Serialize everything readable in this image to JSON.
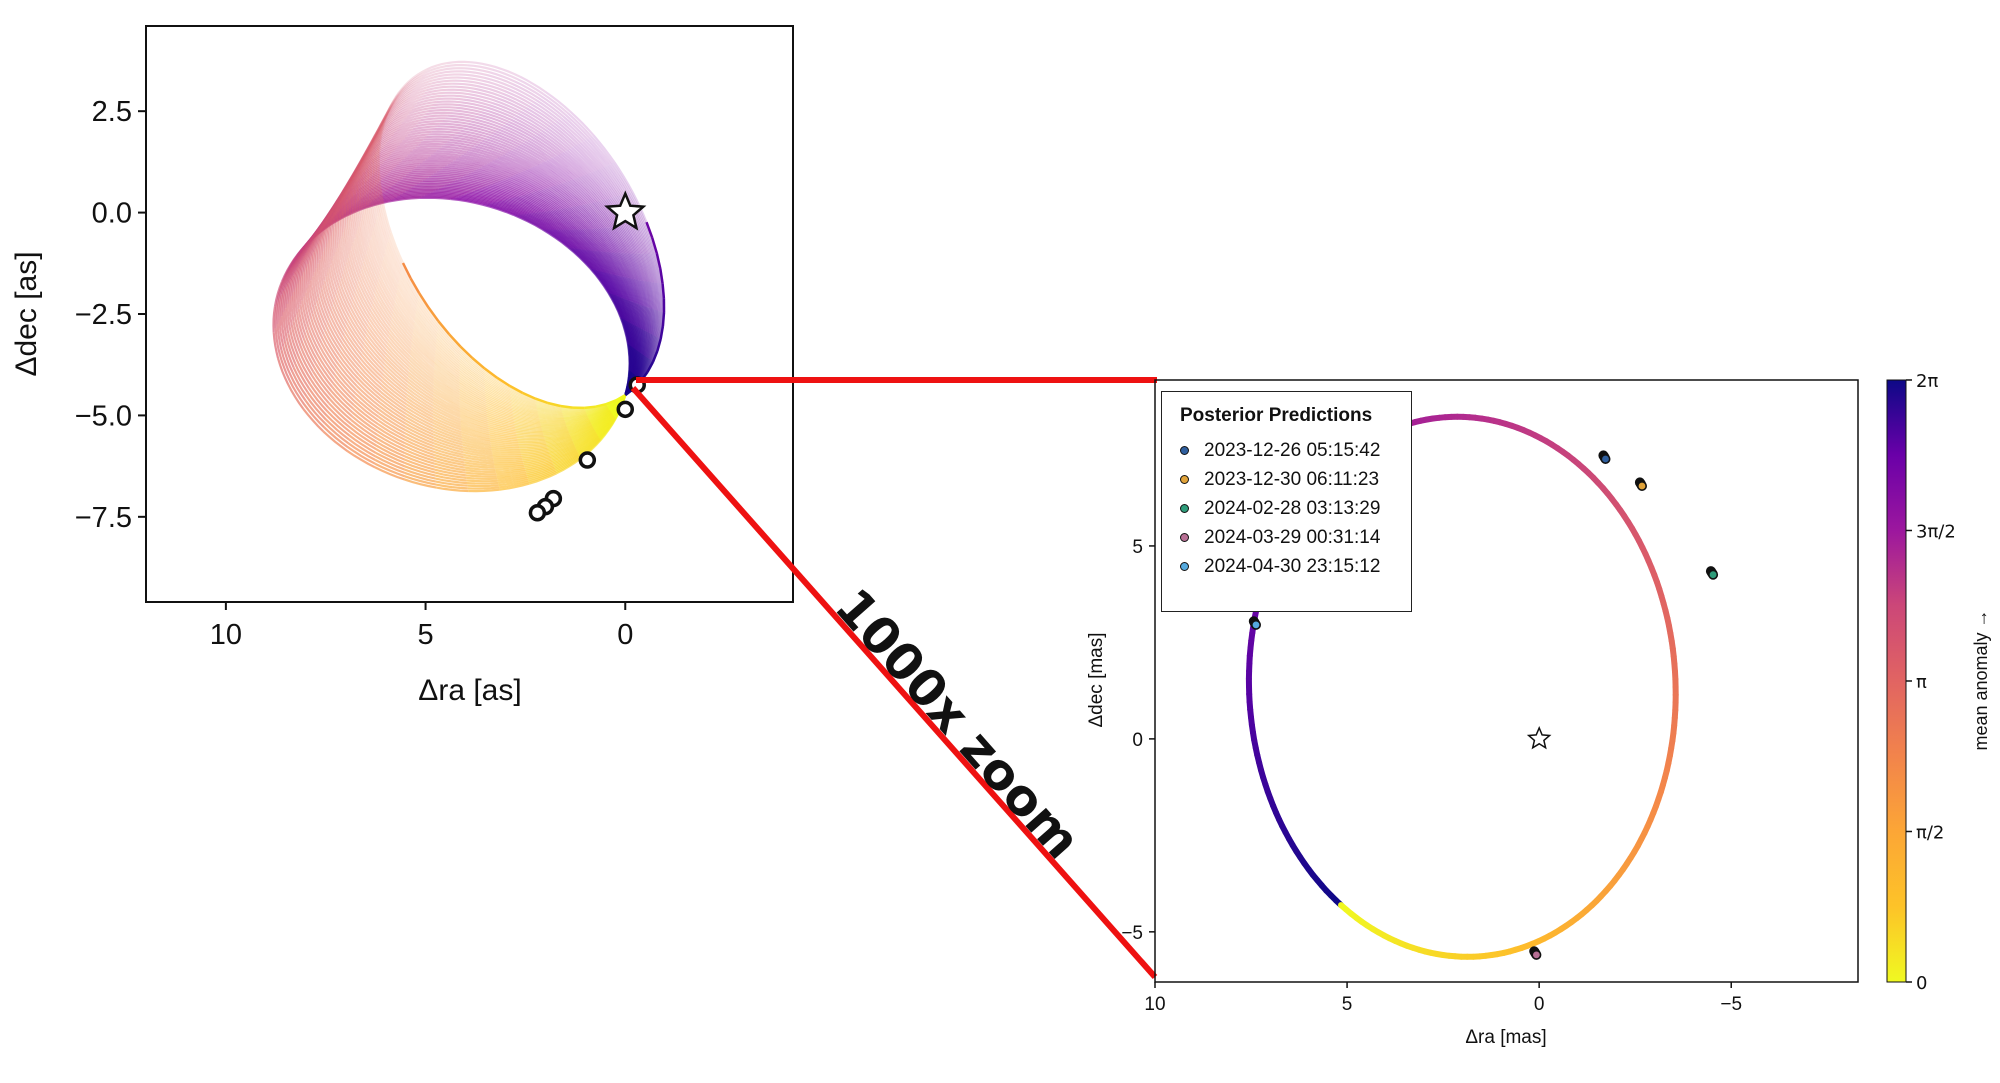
{
  "chart_data": [
    {
      "type": "scatter",
      "title": "",
      "xlabel": "Δra [as]",
      "ylabel": "Δdec [as]",
      "xlim": [
        12,
        -4.2
      ],
      "ylim": [
        -9.6,
        4.6
      ],
      "x_ticks": [
        10,
        5,
        0
      ],
      "x_tick_labels": [
        "10",
        "5",
        "0"
      ],
      "y_ticks": [
        2.5,
        0.0,
        -2.5,
        -5.0,
        -7.5
      ],
      "y_tick_labels": [
        "2.5",
        "0.0",
        "−2.5",
        "−5.0",
        "−7.5"
      ],
      "grid": false,
      "star": {
        "x": 0,
        "y": 0
      },
      "orbit_color_encoding": "mean anomaly",
      "orbit_ensemble": {
        "count": 60,
        "pericenter": {
          "x": 0.0,
          "y": -4.5
        },
        "apocenter_range": [
          {
            "x": 8.7,
            "y": -2.0
          },
          {
            "x": 5.2,
            "y": 3.4
          }
        ]
      },
      "observations": [
        {
          "x": -0.3,
          "y": -4.25
        },
        {
          "x": 0.0,
          "y": -4.85
        },
        {
          "x": 0.95,
          "y": -6.1
        },
        {
          "x": 1.8,
          "y": -7.05
        },
        {
          "x": 2.0,
          "y": -7.25
        },
        {
          "x": 2.2,
          "y": -7.4
        }
      ]
    },
    {
      "type": "scatter",
      "title": "",
      "xlabel": "Δra [mas]",
      "ylabel": "Δdec [mas]",
      "xlim": [
        10,
        -8.3
      ],
      "ylim": [
        -6.3,
        9.3
      ],
      "x_ticks": [
        10,
        5,
        0,
        -5
      ],
      "x_tick_labels": [
        "10",
        "5",
        "0",
        "−5"
      ],
      "y_ticks": [
        5,
        0,
        -5
      ],
      "y_tick_labels": [
        "5",
        "0",
        "−5"
      ],
      "grid": false,
      "star": {
        "x": 0,
        "y": 0
      },
      "legend": {
        "title": "Posterior Predictions",
        "placement": "top-left",
        "entries": [
          {
            "label": "2023-12-26 05:15:42",
            "color": "#2f5f9e"
          },
          {
            "label": "2023-12-30 06:11:23",
            "color": "#e0a33a"
          },
          {
            "label": "2024-02-28 03:13:29",
            "color": "#2e9c7a"
          },
          {
            "label": "2024-03-29 00:31:14",
            "color": "#b76f94"
          },
          {
            "label": "2024-04-30 23:15:12",
            "color": "#55aadf"
          }
        ]
      },
      "orbit": {
        "center": {
          "x": 2.0,
          "y": 1.35
        },
        "semi_axes": [
          5.55,
          7.0
        ],
        "tilt_deg": -3
      },
      "prediction_clusters": [
        {
          "x": 7.4,
          "y": 3.0
        },
        {
          "x": -1.7,
          "y": 7.3
        },
        {
          "x": -2.65,
          "y": 6.6
        },
        {
          "x": -4.5,
          "y": 4.3
        },
        {
          "x": 0.1,
          "y": -5.55
        }
      ],
      "colorbar": {
        "label": "mean anomaly →",
        "range": [
          0,
          6.283
        ],
        "ticks": [
          0,
          1.5708,
          3.1416,
          4.7124,
          6.2832
        ],
        "tick_labels": [
          "0",
          "π/2",
          "π",
          "3π/2",
          "2π"
        ],
        "colormap": "plasma-reversed"
      }
    }
  ],
  "annotation": {
    "zoom_label": "1000x zoom"
  }
}
